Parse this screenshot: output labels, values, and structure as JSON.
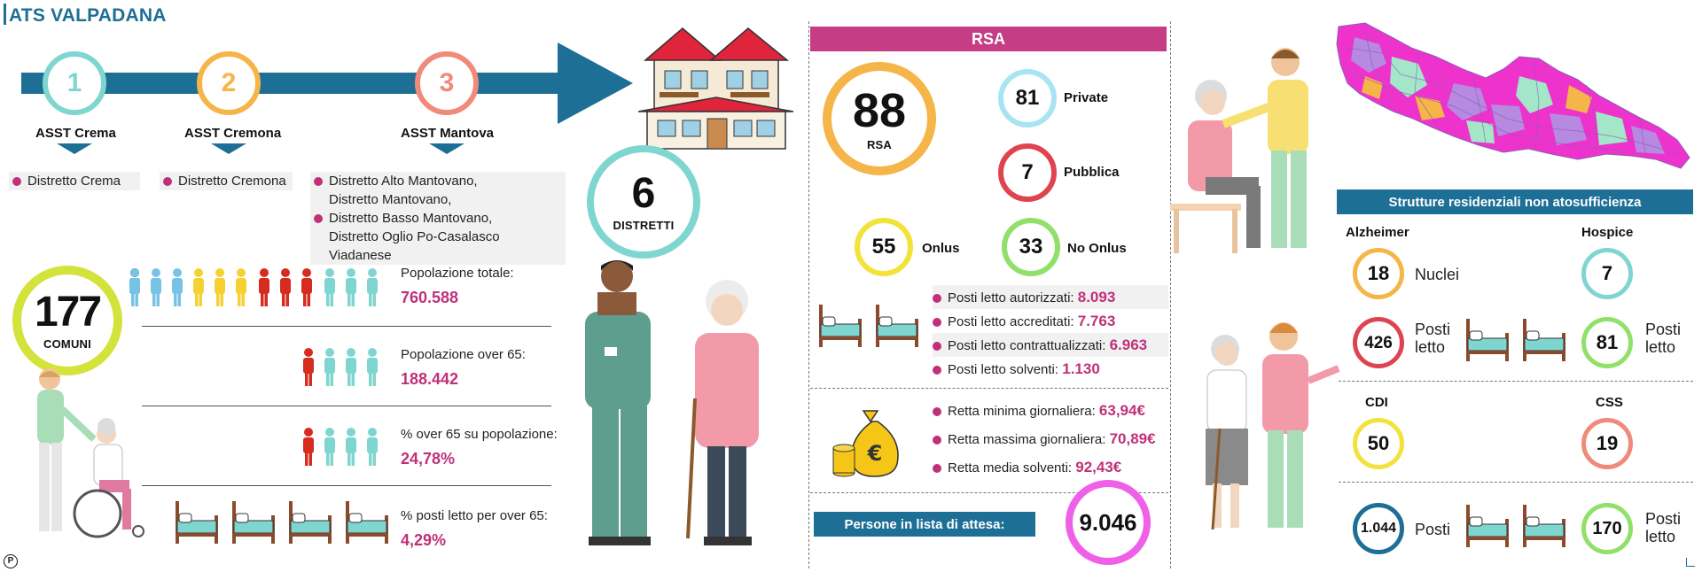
{
  "header": {
    "title": "ATS VALPADANA"
  },
  "districts_flow": {
    "steps": [
      {
        "num": "1",
        "name": "ASST Crema",
        "districts": [
          "Distretto Crema"
        ]
      },
      {
        "num": "2",
        "name": "ASST Cremona",
        "districts": [
          "Distretto Cremona"
        ]
      },
      {
        "num": "3",
        "name": "ASST Mantova",
        "districts": [
          "Distretto Alto Mantovano,",
          "Distretto Mantovano,",
          "Distretto Basso Mantovano,",
          "Distretto Oglio Po-Casalasco Viadanese"
        ]
      }
    ],
    "distretti": {
      "value": "6",
      "label": "DISTRETTI"
    }
  },
  "comuni": {
    "value": "177",
    "label": "COMUNI"
  },
  "population": [
    {
      "label": "Popolazione totale:",
      "value": "760.588"
    },
    {
      "label": "Popolazione over 65:",
      "value": "188.442"
    },
    {
      "label": "% over 65 su popolazione:",
      "value": "24,78%"
    },
    {
      "label": "% posti letto per over 65:",
      "value": "4,29%"
    }
  ],
  "rsa": {
    "title": "RSA",
    "total": {
      "value": "88",
      "label": "RSA"
    },
    "types": [
      {
        "value": "81",
        "label": "Private"
      },
      {
        "value": "7",
        "label": "Pubblica"
      },
      {
        "value": "55",
        "label": "Onlus"
      },
      {
        "value": "33",
        "label": "No Onlus"
      }
    ],
    "beds": [
      {
        "label": "Posti letto autorizzati:",
        "value": "8.093"
      },
      {
        "label": "Posti letto accreditati:",
        "value": "7.763"
      },
      {
        "label": "Posti letto contrattualizzati:",
        "value": "6.963"
      },
      {
        "label": "Posti letto solventi:",
        "value": "1.130"
      }
    ],
    "fees": [
      {
        "label": "Retta minima giornaliera:",
        "value": "63,94€"
      },
      {
        "label": "Retta massima giornaliera:",
        "value": "70,89€"
      },
      {
        "label": "Retta media solventi:",
        "value": "92,43€"
      }
    ],
    "waiting": {
      "label": "Persone in lista di attesa:",
      "value": "9.046"
    },
    "money_symbol": "€"
  },
  "strutture": {
    "title": "Strutture residenziali non atosufficienza",
    "alzheimer": {
      "title": "Alzheimer",
      "nuclei": "18",
      "nuclei_label": "Nuclei",
      "posti": "426",
      "posti_label_1": "Posti",
      "posti_label_2": "letto"
    },
    "hospice": {
      "title": "Hospice",
      "value": "7",
      "posti": "81",
      "posti_label_1": "Posti",
      "posti_label_2": "letto"
    },
    "cdi": {
      "title": "CDI",
      "value": "50",
      "posti": "1.044",
      "posti_label": "Posti"
    },
    "css": {
      "title": "CSS",
      "value": "19",
      "posti": "170",
      "posti_label_1": "Posti",
      "posti_label_2": "letto"
    }
  },
  "footer": {
    "logo_letter": "P"
  },
  "colors": {
    "teal": "#1d6f96",
    "magenta": "#c0307a",
    "banner_rsa": "#c43d85",
    "ring_orange": "#f5b548",
    "ring_mint": "#7fd6d0",
    "ring_red": "#e04350",
    "ring_yellow": "#f2e23a",
    "ring_green": "#90e06a",
    "ring_pink": "#ef5fe8",
    "ring_lime": "#d4e23c"
  }
}
